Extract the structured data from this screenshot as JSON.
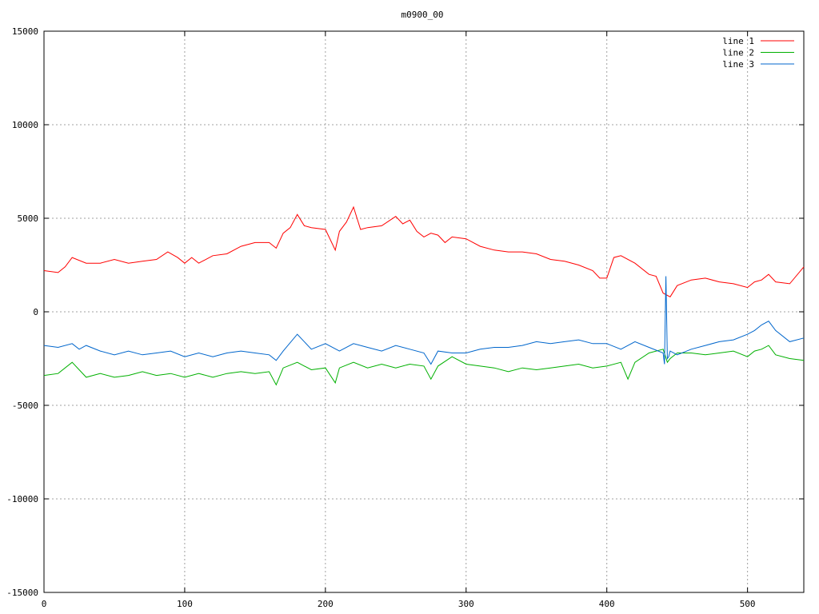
{
  "chart_data": {
    "type": "line",
    "title": "m0900_00",
    "xlabel": "",
    "ylabel": "",
    "xlim": [
      0,
      540
    ],
    "ylim": [
      -15000,
      15000
    ],
    "x_ticks": [
      0,
      100,
      200,
      300,
      400,
      500
    ],
    "y_ticks": [
      -15000,
      -10000,
      -5000,
      0,
      5000,
      10000,
      15000
    ],
    "grid": true,
    "legend_position": "top-right",
    "series": [
      {
        "name": "line 1",
        "color": "#ff0000",
        "x": [
          0,
          10,
          15,
          20,
          30,
          40,
          50,
          60,
          70,
          80,
          88,
          95,
          100,
          105,
          110,
          120,
          130,
          140,
          150,
          160,
          165,
          170,
          175,
          180,
          185,
          190,
          200,
          207,
          210,
          215,
          220,
          225,
          230,
          240,
          250,
          255,
          260,
          265,
          270,
          275,
          280,
          285,
          290,
          300,
          310,
          320,
          330,
          340,
          350,
          360,
          370,
          380,
          390,
          395,
          400,
          405,
          410,
          420,
          430,
          435,
          440,
          445,
          450,
          460,
          470,
          480,
          490,
          500,
          505,
          510,
          515,
          520,
          530,
          540
        ],
        "y": [
          2200,
          2100,
          2400,
          2900,
          2600,
          2600,
          2800,
          2600,
          2700,
          2800,
          3200,
          2900,
          2600,
          2900,
          2600,
          3000,
          3100,
          3500,
          3700,
          3700,
          3400,
          4200,
          4500,
          5200,
          4600,
          4500,
          4400,
          3300,
          4300,
          4800,
          5600,
          4400,
          4500,
          4600,
          5100,
          4700,
          4900,
          4300,
          4000,
          4200,
          4100,
          3700,
          4000,
          3900,
          3500,
          3300,
          3200,
          3200,
          3100,
          2800,
          2700,
          2500,
          2200,
          1800,
          1800,
          2900,
          3000,
          2600,
          2000,
          1900,
          1000,
          800,
          1400,
          1700,
          1800,
          1600,
          1500,
          1300,
          1600,
          1700,
          2000,
          1600,
          1500,
          2400
        ]
      },
      {
        "name": "line 2",
        "color": "#00b000",
        "x": [
          0,
          10,
          20,
          30,
          40,
          50,
          60,
          70,
          80,
          90,
          100,
          110,
          120,
          130,
          140,
          150,
          160,
          165,
          170,
          180,
          190,
          200,
          207,
          210,
          220,
          230,
          240,
          250,
          260,
          270,
          275,
          280,
          290,
          300,
          310,
          320,
          330,
          340,
          350,
          360,
          370,
          380,
          390,
          400,
          410,
          415,
          420,
          430,
          440,
          443,
          445,
          450,
          460,
          470,
          480,
          490,
          500,
          505,
          510,
          515,
          520,
          530,
          540
        ],
        "y": [
          -3400,
          -3300,
          -2700,
          -3500,
          -3300,
          -3500,
          -3400,
          -3200,
          -3400,
          -3300,
          -3500,
          -3300,
          -3500,
          -3300,
          -3200,
          -3300,
          -3200,
          -3900,
          -3000,
          -2700,
          -3100,
          -3000,
          -3800,
          -3000,
          -2700,
          -3000,
          -2800,
          -3000,
          -2800,
          -2900,
          -3600,
          -2900,
          -2400,
          -2800,
          -2900,
          -3000,
          -3200,
          -3000,
          -3100,
          -3000,
          -2900,
          -2800,
          -3000,
          -2900,
          -2700,
          -3600,
          -2700,
          -2200,
          -2000,
          -2700,
          -2500,
          -2200,
          -2200,
          -2300,
          -2200,
          -2100,
          -2400,
          -2100,
          -2000,
          -1800,
          -2300,
          -2500,
          -2600
        ]
      },
      {
        "name": "line 3",
        "color": "#0066cc",
        "x": [
          0,
          10,
          20,
          25,
          30,
          40,
          50,
          60,
          70,
          80,
          90,
          100,
          110,
          120,
          130,
          140,
          150,
          160,
          165,
          170,
          180,
          190,
          200,
          210,
          220,
          230,
          240,
          250,
          260,
          270,
          275,
          280,
          290,
          300,
          310,
          320,
          330,
          340,
          350,
          360,
          370,
          380,
          390,
          400,
          410,
          420,
          430,
          440,
          441,
          442,
          443,
          444,
          445,
          450,
          460,
          470,
          480,
          490,
          500,
          505,
          510,
          515,
          520,
          530,
          540
        ],
        "y": [
          -1800,
          -1900,
          -1700,
          -2000,
          -1800,
          -2100,
          -2300,
          -2100,
          -2300,
          -2200,
          -2100,
          -2400,
          -2200,
          -2400,
          -2200,
          -2100,
          -2200,
          -2300,
          -2600,
          -2100,
          -1200,
          -2000,
          -1700,
          -2100,
          -1700,
          -1900,
          -2100,
          -1800,
          -2000,
          -2200,
          -2800,
          -2100,
          -2200,
          -2200,
          -2000,
          -1900,
          -1900,
          -1800,
          -1600,
          -1700,
          -1600,
          -1500,
          -1700,
          -1700,
          -2000,
          -1600,
          -1900,
          -2200,
          -2800,
          1900,
          -2500,
          -2400,
          -2100,
          -2300,
          -2000,
          -1800,
          -1600,
          -1500,
          -1200,
          -1000,
          -700,
          -500,
          -1000,
          -1600,
          -1400
        ]
      }
    ]
  }
}
